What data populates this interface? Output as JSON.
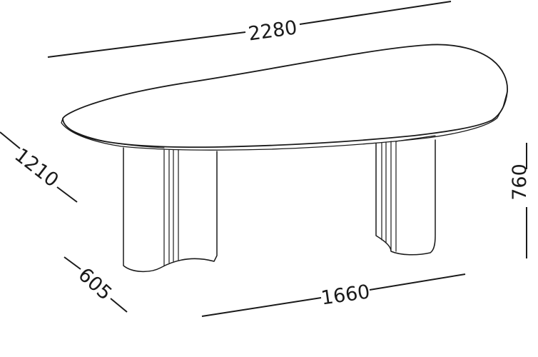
{
  "dimensions": {
    "length": "2280",
    "width": "1210",
    "height": "760",
    "leg_spacing": "1660",
    "leg_depth": "605"
  },
  "colors": {
    "ink": "#1a1a1a",
    "background": "#ffffff"
  }
}
